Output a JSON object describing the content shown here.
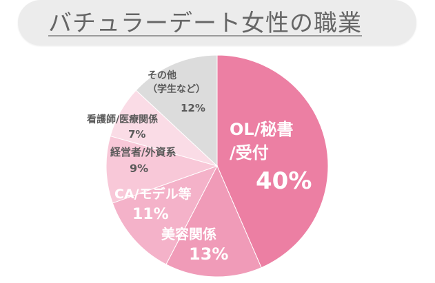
{
  "title": "バチュラーデート女性の職業",
  "chart_data": {
    "type": "pie",
    "title": "バチュラーデート女性の職業",
    "slices": [
      {
        "label_lines": [
          "OL/秘書",
          "/受付"
        ],
        "value": 40,
        "value_label": "40%",
        "color": "#ec7fa3",
        "text_color": "#ffffff"
      },
      {
        "label_lines": [
          "美容関係"
        ],
        "value": 13,
        "value_label": "13%",
        "color": "#f09bb8",
        "text_color": "#ffffff"
      },
      {
        "label_lines": [
          "CA/モデル等"
        ],
        "value": 11,
        "value_label": "11%",
        "color": "#f4b2c9",
        "text_color": "#ffffff"
      },
      {
        "label_lines": [
          "経営者/外資系"
        ],
        "value": 9,
        "value_label": "9%",
        "color": "#f8c8d8",
        "text_color": "#5a5a5a"
      },
      {
        "label_lines": [
          "看護師/医療関係"
        ],
        "value": 7,
        "value_label": "7%",
        "color": "#fadce6",
        "text_color": "#5a5a5a"
      },
      {
        "label_lines": [
          "その他",
          "（学生など）"
        ],
        "value": 12,
        "value_label": "12%",
        "color": "#dcdcdc",
        "text_color": "#5a5a5a"
      }
    ]
  }
}
